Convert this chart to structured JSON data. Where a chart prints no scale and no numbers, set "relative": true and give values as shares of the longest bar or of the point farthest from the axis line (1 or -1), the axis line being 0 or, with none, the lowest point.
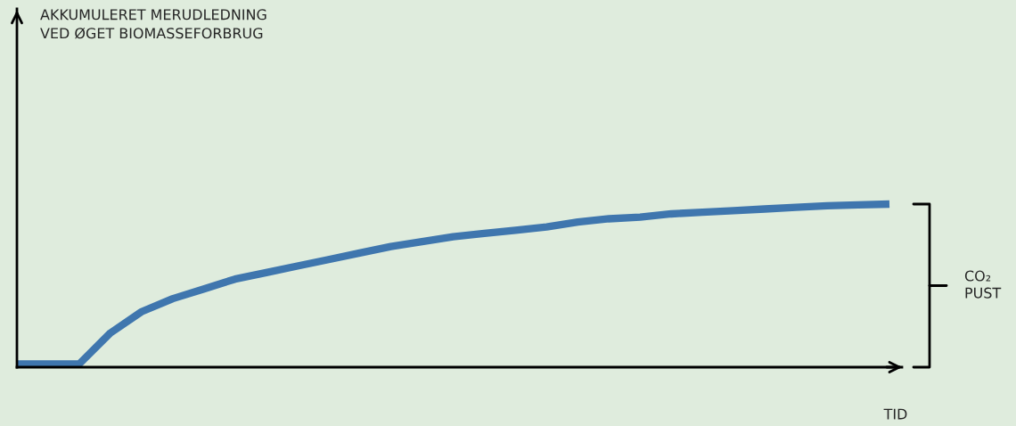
{
  "chart_data": {
    "type": "line",
    "relative": true,
    "xlabel": "TID",
    "annotations": [
      "AKKUMULERET MERUDLEDNING\nVED ØGET BIOMASSEFORBRUG",
      "CO₂\nPUST"
    ],
    "categories": [
      null,
      null,
      null,
      null,
      null,
      null,
      null,
      null,
      null,
      null,
      null,
      null,
      null,
      null,
      null,
      null,
      null,
      null,
      null,
      null,
      null,
      null,
      null,
      null,
      null,
      null,
      null,
      null,
      null
    ],
    "series": [
      {
        "color": "#3f76ae",
        "values": [
          0.02,
          0.02,
          0.02,
          0.21,
          0.34,
          0.42,
          0.48,
          0.54,
          0.58,
          0.62,
          0.66,
          0.7,
          0.74,
          0.77,
          0.8,
          0.82,
          0.84,
          0.86,
          0.89,
          0.91,
          0.92,
          0.94,
          0.95,
          0.96,
          0.97,
          0.98,
          0.99,
          0.995,
          1.0
        ]
      }
    ],
    "grid": false,
    "legend": false,
    "marker": "none",
    "line_style": "solid"
  }
}
